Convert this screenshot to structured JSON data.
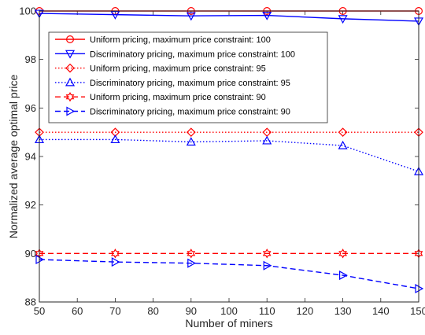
{
  "chart_data": {
    "type": "line",
    "title": "",
    "xlabel": "Number of miners",
    "ylabel": "Normalized average optimal price",
    "xlim": [
      50,
      150
    ],
    "ylim": [
      88,
      100
    ],
    "xticks": [
      50,
      60,
      70,
      80,
      90,
      100,
      110,
      120,
      130,
      140,
      150
    ],
    "yticks": [
      88,
      90,
      92,
      94,
      96,
      98,
      100
    ],
    "grid": false,
    "legend_position": "top-left",
    "x": [
      50,
      70,
      90,
      110,
      130,
      150
    ],
    "series": [
      {
        "name": "Uniform pricing, maximum price constraint: 100",
        "values": [
          100,
          100,
          100,
          100,
          100,
          100
        ],
        "color": "#ff0000",
        "line_style": "solid",
        "marker": "circle"
      },
      {
        "name": "Discriminatory pricing, maximum price constraint: 100",
        "values": [
          99.9,
          99.85,
          99.8,
          99.82,
          99.68,
          99.58
        ],
        "color": "#0000ff",
        "line_style": "solid",
        "marker": "triangle-down"
      },
      {
        "name": "Uniform pricing, maximum price constraint: 95",
        "values": [
          95,
          95,
          95,
          95,
          95,
          95
        ],
        "color": "#ff0000",
        "line_style": "dotted",
        "marker": "diamond"
      },
      {
        "name": "Discriminatory pricing, maximum price constraint: 95",
        "values": [
          94.7,
          94.7,
          94.6,
          94.65,
          94.45,
          93.38
        ],
        "color": "#0000ff",
        "line_style": "dotted",
        "marker": "triangle-up"
      },
      {
        "name": "Uniform pricing, maximum price constraint: 90",
        "values": [
          90,
          90,
          90,
          90,
          90,
          90
        ],
        "color": "#ff0000",
        "line_style": "dashed",
        "marker": "hexagram"
      },
      {
        "name": "Discriminatory pricing, maximum price constraint: 90",
        "values": [
          89.75,
          89.65,
          89.6,
          89.5,
          89.1,
          88.55
        ],
        "color": "#0000ff",
        "line_style": "dashed",
        "marker": "triangle-right"
      }
    ]
  }
}
